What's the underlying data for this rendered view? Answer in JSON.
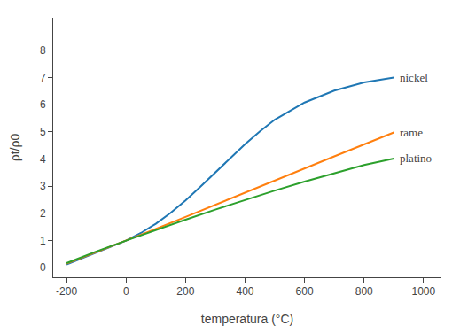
{
  "chart_data": {
    "type": "line",
    "xlabel": "temperatura (°C)",
    "ylabel": "ρt/ρ0",
    "series": [
      {
        "name": "nickel",
        "x": [
          -200,
          -150,
          -100,
          -50,
          0,
          50,
          100,
          150,
          200,
          250,
          300,
          350,
          400,
          450,
          500,
          600,
          700,
          800,
          900
        ],
        "values": [
          0.12,
          0.35,
          0.56,
          0.78,
          1.0,
          1.28,
          1.62,
          2.02,
          2.48,
          2.98,
          3.5,
          4.02,
          4.55,
          5.02,
          5.45,
          6.08,
          6.52,
          6.82,
          7.0
        ]
      },
      {
        "name": "rame",
        "x": [
          -200,
          -100,
          0,
          100,
          200,
          300,
          400,
          500,
          600,
          700,
          800,
          900
        ],
        "values": [
          0.15,
          0.57,
          1.0,
          1.43,
          1.87,
          2.32,
          2.77,
          3.21,
          3.66,
          4.1,
          4.54,
          4.98
        ]
      },
      {
        "name": "platino",
        "x": [
          -200,
          -100,
          0,
          100,
          200,
          300,
          400,
          500,
          600,
          700,
          800,
          900
        ],
        "values": [
          0.17,
          0.6,
          1.0,
          1.39,
          1.77,
          2.14,
          2.5,
          2.84,
          3.17,
          3.48,
          3.78,
          4.02
        ]
      }
    ],
    "xlim": [
      -245,
      1060
    ],
    "ylim": [
      -0.35,
      9.2
    ],
    "xticks": [
      -200,
      0,
      200,
      400,
      600,
      800,
      1000
    ],
    "yticks": [
      0,
      1,
      2,
      3,
      4,
      5,
      6,
      7,
      8
    ],
    "grid": false
  }
}
